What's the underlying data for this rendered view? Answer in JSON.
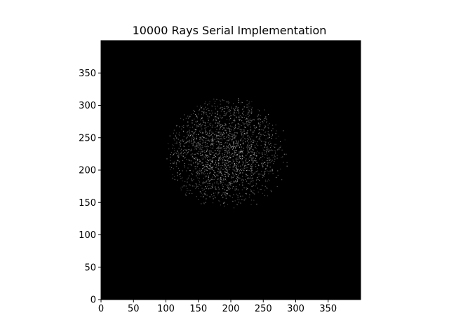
{
  "chart_data": {
    "type": "heatmap",
    "title": "10000 Rays Serial Implementation",
    "xlabel": "",
    "ylabel": "",
    "xlim": [
      0,
      400
    ],
    "ylim": [
      0,
      400
    ],
    "xticks": [
      0,
      50,
      100,
      150,
      200,
      250,
      300,
      350
    ],
    "yticks": [
      0,
      50,
      100,
      150,
      200,
      250,
      300,
      350
    ],
    "grid": false,
    "colormap": "gray",
    "background_color": "#000000",
    "illuminated_region": {
      "shape": "ellipse",
      "center": [
        195,
        225
      ],
      "radius_x": 95,
      "radius_y": 88,
      "ray_hits": 10000,
      "brightest_side": "upper-left"
    }
  }
}
